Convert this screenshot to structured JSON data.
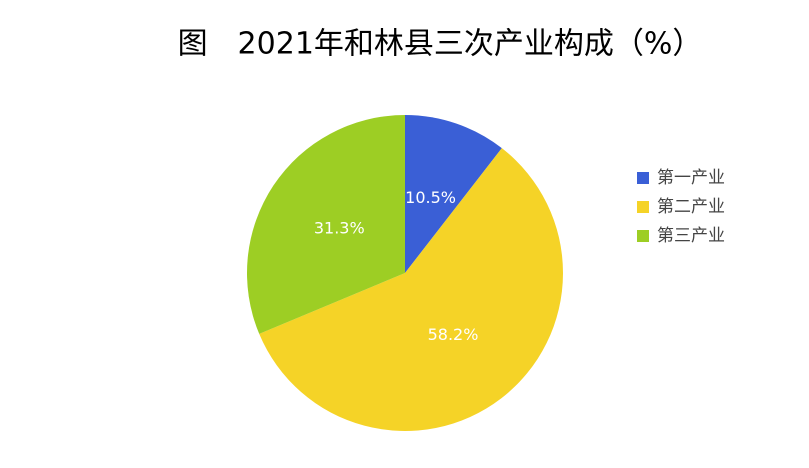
{
  "chart_data": {
    "type": "pie",
    "title": "图　2021年和林县三次产业构成（%）",
    "categories": [
      "第一产业",
      "第二产业",
      "第三产业"
    ],
    "values": [
      10.5,
      58.2,
      31.3
    ],
    "value_labels": [
      "10.5%",
      "58.2%",
      "31.3%"
    ],
    "colors": [
      "#3a5fd6",
      "#f5d327",
      "#9dce24"
    ],
    "legend": "right"
  }
}
